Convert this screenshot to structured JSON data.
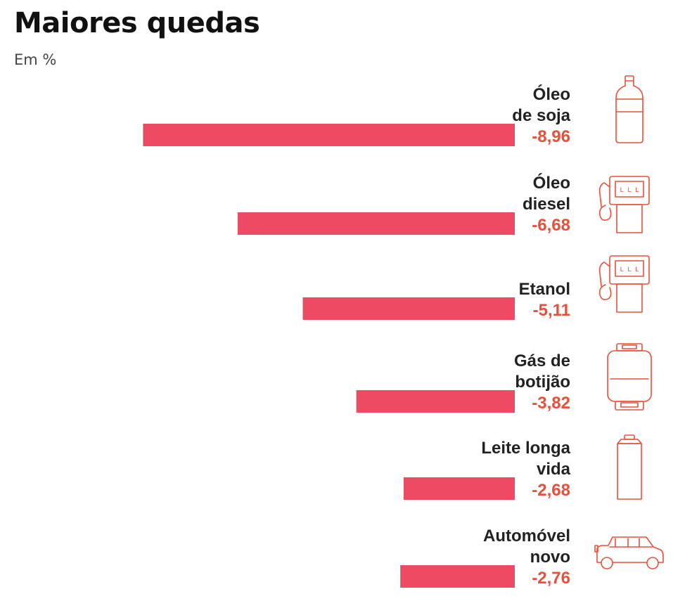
{
  "title": "Maiores quedas",
  "subtitle": "Em %",
  "colors": {
    "bar": "#ef4a63",
    "value": "#e8503a",
    "icon": "#e8503a",
    "label": "#222222"
  },
  "chart_data": {
    "type": "bar",
    "orientation": "horizontal",
    "title": "Maiores quedas",
    "unit": "Em %",
    "categories": [
      {
        "lines": [
          "Óleo",
          "de soja"
        ],
        "icon": "bottle-icon"
      },
      {
        "lines": [
          "Óleo",
          "diesel"
        ],
        "icon": "fuel-pump-icon"
      },
      {
        "lines": [
          "Etanol"
        ],
        "icon": "fuel-pump-icon"
      },
      {
        "lines": [
          "Gás de",
          "botijão"
        ],
        "icon": "gas-cylinder-icon"
      },
      {
        "lines": [
          "Leite longa",
          "vida"
        ],
        "icon": "milk-carton-icon"
      },
      {
        "lines": [
          "Automóvel",
          "novo"
        ],
        "icon": "car-icon"
      }
    ],
    "values": [
      -8.96,
      -6.68,
      -5.11,
      -3.82,
      -2.68,
      -2.76
    ],
    "value_labels": [
      "-8,96",
      "-6,68",
      "-5,11",
      "-3,82",
      "-2,68",
      "-2,76"
    ],
    "xlim": [
      -8.96,
      0
    ],
    "grid": false,
    "legend": "none"
  }
}
